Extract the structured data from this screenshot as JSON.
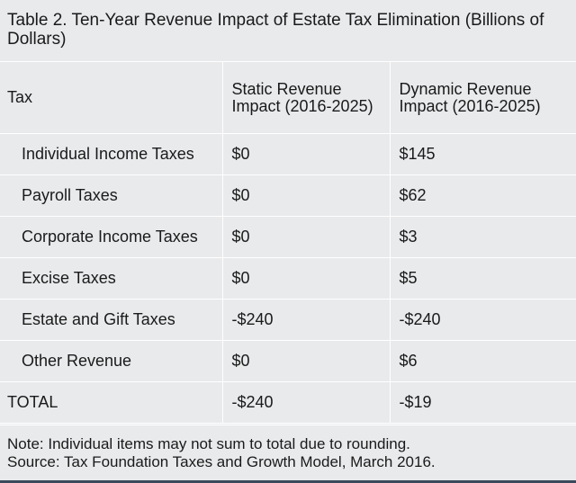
{
  "title": "Table 2. Ten-Year Revenue Impact of Estate Tax Elimination (Billions of Dollars)",
  "table": {
    "headers": [
      "Tax",
      "Static Revenue Impact (2016-2025)",
      "Dynamic Revenue Impact (2016-2025)"
    ],
    "rows": [
      {
        "label": "Individual Income Taxes",
        "static": "$0",
        "dynamic": "$145"
      },
      {
        "label": "Payroll Taxes",
        "static": "$0",
        "dynamic": "$62"
      },
      {
        "label": "Corporate Income Taxes",
        "static": "$0",
        "dynamic": "$3"
      },
      {
        "label": "Excise Taxes",
        "static": "$0",
        "dynamic": "$5"
      },
      {
        "label": "Estate and Gift Taxes",
        "static": "-$240",
        "dynamic": "-$240"
      },
      {
        "label": "Other Revenue",
        "static": "$0",
        "dynamic": "$6"
      }
    ],
    "total": {
      "label": "TOTAL",
      "static": "-$240",
      "dynamic": "-$19"
    }
  },
  "notes": {
    "note": "Note: Individual items may not sum to total due to rounding.",
    "source": "Source: Tax Foundation Taxes and Growth Model, March 2016."
  }
}
